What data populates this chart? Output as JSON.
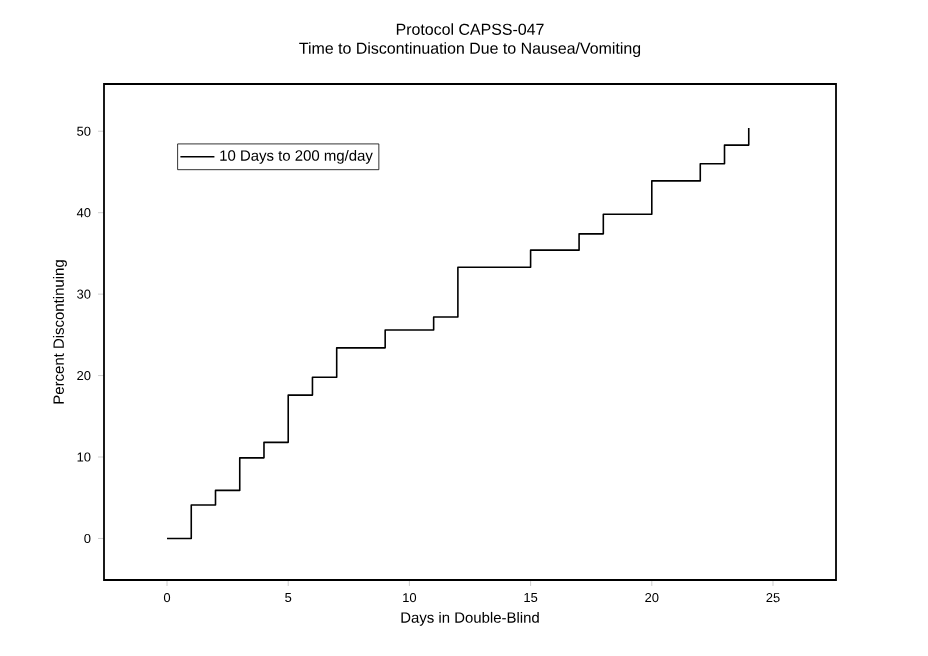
{
  "chart_data": {
    "type": "step",
    "title": "Protocol CAPSS-047",
    "subtitle": "Time to Discontinuation Due to Nausea/Vomiting",
    "xlabel": "Days in Double-Blind",
    "ylabel": "Percent Discontinuing",
    "series": [
      {
        "name": "10 Days to 200 mg/day",
        "color": "#000000",
        "x": [
          0,
          1,
          2,
          3,
          4,
          5,
          6,
          7,
          9,
          11,
          12,
          15,
          17,
          18,
          20,
          22,
          23,
          24
        ],
        "values": [
          0,
          4.1,
          5.9,
          9.9,
          11.8,
          17.6,
          19.8,
          23.4,
          25.6,
          27.2,
          33.3,
          35.4,
          37.4,
          39.8,
          43.9,
          46.0,
          48.3,
          50.4
        ]
      }
    ],
    "xlim": [
      -2.6,
      27.6
    ],
    "xticks": [
      0,
      5,
      10,
      15,
      20,
      25
    ],
    "ylim": [
      -5.1,
      55.8
    ],
    "yticks": [
      0,
      10,
      20,
      30,
      40,
      50
    ],
    "grid": false,
    "legend": "top left",
    "marker": "none",
    "line_style": "solid"
  }
}
